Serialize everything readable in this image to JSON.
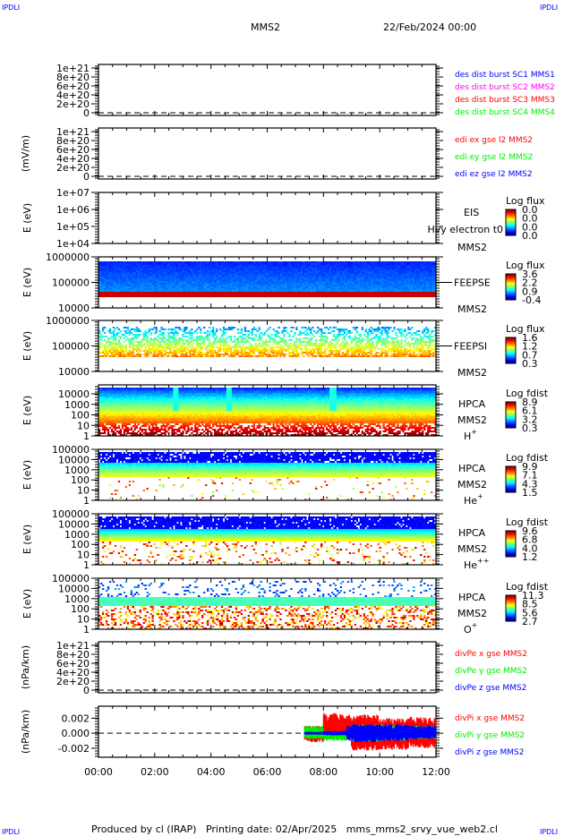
{
  "header": {
    "corner_left": "IPDLI",
    "corner_right": "IPDLI",
    "spacecraft": "MMS2",
    "date": "22/Feb/2024 00:00"
  },
  "footer": {
    "corner_left": "IPDLI",
    "corner_right": "IPDLI",
    "text": "Produced by cl (IRAP)   Printing date: 02/Apr/2025   mms_mms2_srvy_vue_web2.cl"
  },
  "chart_data": {
    "type": "multi-panel time series",
    "x_ticks": [
      "00:00",
      "02:00",
      "04:00",
      "06:00",
      "08:00",
      "10:00",
      "12:00"
    ],
    "xlim_hours": [
      0,
      12
    ],
    "panels": [
      {
        "type": "line",
        "ylabel": "",
        "yticks": [
          "1e+21",
          "8e+20",
          "6e+20",
          "4e+20",
          "2e+20",
          "0"
        ],
        "zero_line": true,
        "legend": [
          {
            "text": "des dist burst SC1 MMS1",
            "color": "#0000ff"
          },
          {
            "text": "des dist burst SC2 MMS2",
            "color": "#ff00ff"
          },
          {
            "text": "des dist burst SC3 MMS3",
            "color": "#ff0000"
          },
          {
            "text": "des dist burst SC4 MMS4",
            "color": "#00ee00"
          }
        ]
      },
      {
        "type": "line",
        "ylabel": "(mV/m)",
        "yticks": [
          "1e+21",
          "8e+20",
          "6e+20",
          "4e+20",
          "2e+20",
          "0"
        ],
        "zero_line": true,
        "legend": [
          {
            "text": "edi ex gse l2 MMS2",
            "color": "#ff0000"
          },
          {
            "text": "edi ey gse l2 MMS2",
            "color": "#00ee00"
          },
          {
            "text": "edi ez gse l2 MMS2",
            "color": "#0000ff"
          }
        ]
      },
      {
        "type": "heatmap",
        "ylabel": "E (eV)",
        "yticks": [
          "1e+07",
          "1e+06",
          "1e+05",
          "1e+04"
        ],
        "labels": [
          "EIS",
          "Hvy electron t0",
          "MMS2"
        ],
        "colorbar": {
          "title": "Log flux",
          "values": [
            "0.0",
            "0.0",
            "0.0",
            "0.0"
          ]
        },
        "pattern": "empty"
      },
      {
        "type": "heatmap",
        "ylabel": "E (eV)",
        "yticks": [
          "1000000",
          "100000",
          "10000"
        ],
        "labels": [
          "FEEPSE",
          "MMS2"
        ],
        "colorbar": {
          "title": "Log flux",
          "values": [
            "3.6",
            "2.2",
            "0.9",
            "-0.4"
          ]
        },
        "pattern": "feepse"
      },
      {
        "type": "heatmap",
        "ylabel": "E (eV)",
        "yticks": [
          "1000000",
          "100000",
          "10000"
        ],
        "labels": [
          "FEEPSI",
          "MMS2"
        ],
        "colorbar": {
          "title": "Log flux",
          "values": [
            "1.6",
            "1.2",
            "0.7",
            "0.3"
          ]
        },
        "pattern": "feepsi"
      },
      {
        "type": "heatmap",
        "ylabel": "E (eV)",
        "yticks": [
          "10000",
          "1000",
          "100",
          "10",
          "1"
        ],
        "labels": [
          "HPCA",
          "MMS2",
          "H",
          "+"
        ],
        "colorbar": {
          "title": "Log fdist",
          "values": [
            "8.9",
            "6.1",
            "3.2",
            "0.3"
          ]
        },
        "pattern": "hplus"
      },
      {
        "type": "heatmap",
        "ylabel": "E (eV)",
        "yticks": [
          "100000",
          "10000",
          "1000",
          "100",
          "10",
          "1"
        ],
        "labels": [
          "HPCA",
          "MMS2",
          "He",
          "+"
        ],
        "colorbar": {
          "title": "Log fdist",
          "values": [
            "9.9",
            "7.1",
            "4.3",
            "1.5"
          ]
        },
        "pattern": "heplus"
      },
      {
        "type": "heatmap",
        "ylabel": "E (eV)",
        "yticks": [
          "100000",
          "10000",
          "1000",
          "100",
          "10",
          "1"
        ],
        "labels": [
          "HPCA",
          "MMS2",
          "He",
          "++"
        ],
        "colorbar": {
          "title": "Log fdist",
          "values": [
            "9.6",
            "6.8",
            "4.0",
            "1.2"
          ]
        },
        "pattern": "hepp"
      },
      {
        "type": "heatmap",
        "ylabel": "E (eV)",
        "yticks": [
          "100000",
          "10000",
          "1000",
          "100",
          "10",
          "1"
        ],
        "labels": [
          "HPCA",
          "MMS2",
          "O",
          "+"
        ],
        "colorbar": {
          "title": "Log fdist",
          "values": [
            "11.3",
            "8.5",
            "5.6",
            "2.7"
          ]
        },
        "pattern": "oplus"
      },
      {
        "type": "line",
        "ylabel": "(nPa/km)",
        "yticks": [
          "1e+21",
          "8e+20",
          "6e+20",
          "4e+20",
          "2e+20",
          "0"
        ],
        "zero_line": true,
        "legend": [
          {
            "text": "divPe x gse MMS2",
            "color": "#ff0000"
          },
          {
            "text": "divPe y gse MMS2",
            "color": "#00ee00"
          },
          {
            "text": "divPe z gse MMS2",
            "color": "#0000ff"
          }
        ]
      },
      {
        "type": "line",
        "ylabel": "(nPa/km)",
        "yticks": [
          "0.002",
          "0.000",
          "-0.002"
        ],
        "ylim": [
          -0.0032,
          0.0036
        ],
        "zero_line": true,
        "legend": [
          {
            "text": "divPi x gse MMS2",
            "color": "#ff0000"
          },
          {
            "text": "divPi y gse MMS2",
            "color": "#00ee00"
          },
          {
            "text": "divPi z gse MMS2",
            "color": "#0000ff"
          }
        ],
        "series": [
          {
            "color": "#ff0000",
            "envelope": [
              [
                "07:20",
                -0.0012,
                0.001
              ],
              [
                "08:00",
                -0.0005,
                0.0027
              ],
              [
                "08:50",
                -0.0004,
                0.0025
              ],
              [
                "09:00",
                -0.0023,
                0.0025
              ],
              [
                "10:00",
                -0.0022,
                0.002
              ],
              [
                "11:00",
                -0.002,
                0.0022
              ],
              [
                "12:00",
                -0.0018,
                0.0018
              ]
            ]
          },
          {
            "color": "#00ee00",
            "envelope": [
              [
                "07:20",
                -0.0008,
                0.001
              ],
              [
                "08:00",
                -0.001,
                0.0003
              ],
              [
                "08:50",
                -0.0005,
                0.0004
              ],
              [
                "09:00",
                -0.0012,
                0.0012
              ],
              [
                "10:00",
                -0.001,
                0.0012
              ],
              [
                "11:00",
                -0.0008,
                0.001
              ],
              [
                "12:00",
                -0.0008,
                0.001
              ]
            ]
          },
          {
            "color": "#0000ff",
            "envelope": [
              [
                "07:20",
                -0.0002,
                0.0002
              ],
              [
                "08:00",
                -0.0003,
                0.0003
              ],
              [
                "08:50",
                -0.001,
                0.0011
              ],
              [
                "09:00",
                -0.0012,
                0.0012
              ],
              [
                "10:00",
                -0.001,
                0.0012
              ],
              [
                "11:00",
                -0.0008,
                0.001
              ],
              [
                "12:00",
                -0.0008,
                0.001
              ]
            ]
          }
        ]
      }
    ]
  }
}
